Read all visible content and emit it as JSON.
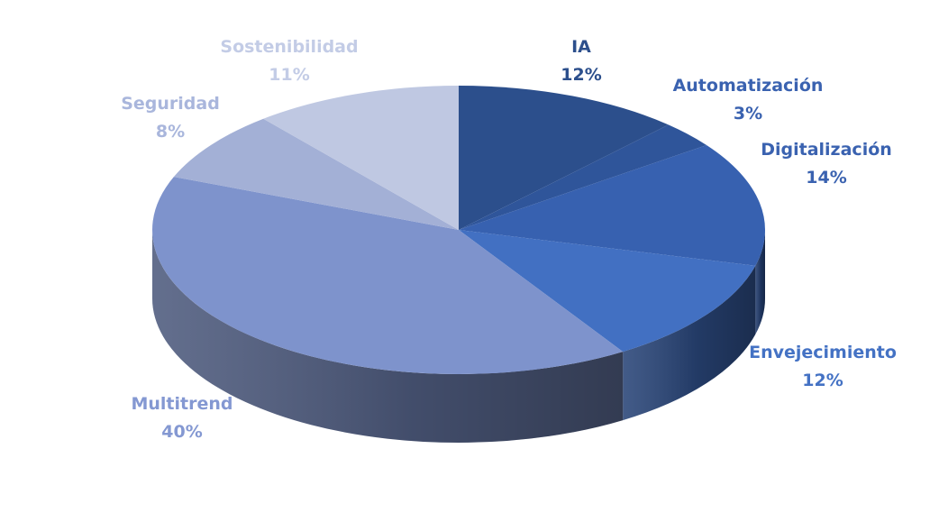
{
  "chart_data": {
    "type": "pie",
    "title": "",
    "style": "3d",
    "slices": [
      {
        "name": "IA",
        "value": 12,
        "label": "12%",
        "color": "#2c4f8c",
        "label_color": "#2c4f8c"
      },
      {
        "name": "Automatización",
        "value": 3,
        "label": "3%",
        "color": "#2f559a",
        "label_color": "#3a62b0"
      },
      {
        "name": "Digitalización",
        "value": 14,
        "label": "14%",
        "color": "#3761b0",
        "label_color": "#3a62b0"
      },
      {
        "name": "Envejecimiento",
        "value": 12,
        "label": "12%",
        "color": "#4270c2",
        "label_color": "#4472c4"
      },
      {
        "name": "Multitrend",
        "value": 40,
        "label": "40%",
        "color": "#7e93cc",
        "label_color": "#8498d2"
      },
      {
        "name": "Seguridad",
        "value": 8,
        "label": "8%",
        "color": "#a3b0d6",
        "label_color": "#a9b6dc"
      },
      {
        "name": "Sostenibilidad",
        "value": 11,
        "label": "11%",
        "color": "#bfc8e2",
        "label_color": "#c3cce6"
      }
    ]
  }
}
